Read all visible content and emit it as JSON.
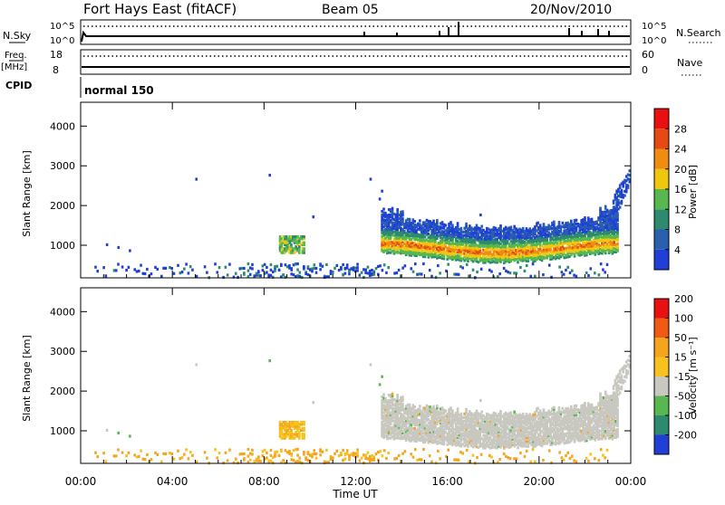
{
  "header": {
    "station": "Fort Hays East (fitACF)",
    "beam": "Beam 05",
    "date": "20/Nov/2010"
  },
  "top_panels": {
    "nsky_label": "N.Sky",
    "nsky_ticks": [
      "10^5",
      "10^0"
    ],
    "nsearch_label": "N.Search",
    "nsearch_ticks": [
      "10^5",
      "10^0"
    ],
    "freq_label": "Freq.",
    "freq_unit": "[MHz]",
    "freq_ticks": [
      "18",
      "8"
    ],
    "nave_label": "Nave",
    "nave_ticks": [
      "60",
      "0"
    ],
    "cpid_label": "CPID",
    "cpid_value": "normal 150"
  },
  "colors": {
    "frame": "#000000",
    "power_scale": [
      "#1f3fd6",
      "#2a5fb0",
      "#2e8a6e",
      "#58b84f",
      "#f0c70f",
      "#f08c10",
      "#e64a14",
      "#e81010"
    ],
    "velocity_scale": [
      "#e81010",
      "#f05a14",
      "#f5a51c",
      "#f7c21d",
      "#c8c8c0",
      "#58b84f",
      "#2e8a6e",
      "#1f3fd6"
    ]
  },
  "chart_data": [
    {
      "type": "heatmap",
      "name": "power",
      "ylabel": "Slant Range [km]",
      "y_ticks": [
        "1000",
        "2000",
        "3000",
        "4000"
      ],
      "ylim": [
        180,
        4600
      ],
      "colorbar_label": "Power [dB]",
      "colorbar_ticks": [
        "4",
        "8",
        "12",
        "16",
        "20",
        "24",
        "28"
      ],
      "colorbar_range": [
        0,
        32
      ],
      "regions": [
        {
          "t0": 13.1,
          "t1": 23.4,
          "r_center": 1100,
          "note": "broad band",
          "level": "strong"
        },
        {
          "t0": 8.6,
          "t1": 9.8,
          "r_center": 1050,
          "level": "moderate"
        },
        {
          "t0": 0.5,
          "t1": 23.0,
          "r_center": 260,
          "level": "weak"
        },
        {
          "t0": 23.3,
          "t1": 24.0,
          "r_center": 2550,
          "level": "moderate"
        }
      ]
    },
    {
      "type": "heatmap",
      "name": "velocity",
      "ylabel": "Slant Range [km]",
      "y_ticks": [
        "1000",
        "2000",
        "3000",
        "4000"
      ],
      "ylim": [
        180,
        4600
      ],
      "colorbar_label": "Velocity [m s⁻¹]",
      "colorbar_ticks": [
        "200",
        "100",
        "50",
        "15",
        "-15",
        "-50",
        "-100",
        "-200"
      ],
      "x_ticks": [
        "00:00",
        "04:00",
        "08:00",
        "12:00",
        "16:00",
        "20:00",
        "00:00"
      ],
      "xlim": [
        0,
        24
      ],
      "xlabel": "Time UT"
    }
  ]
}
